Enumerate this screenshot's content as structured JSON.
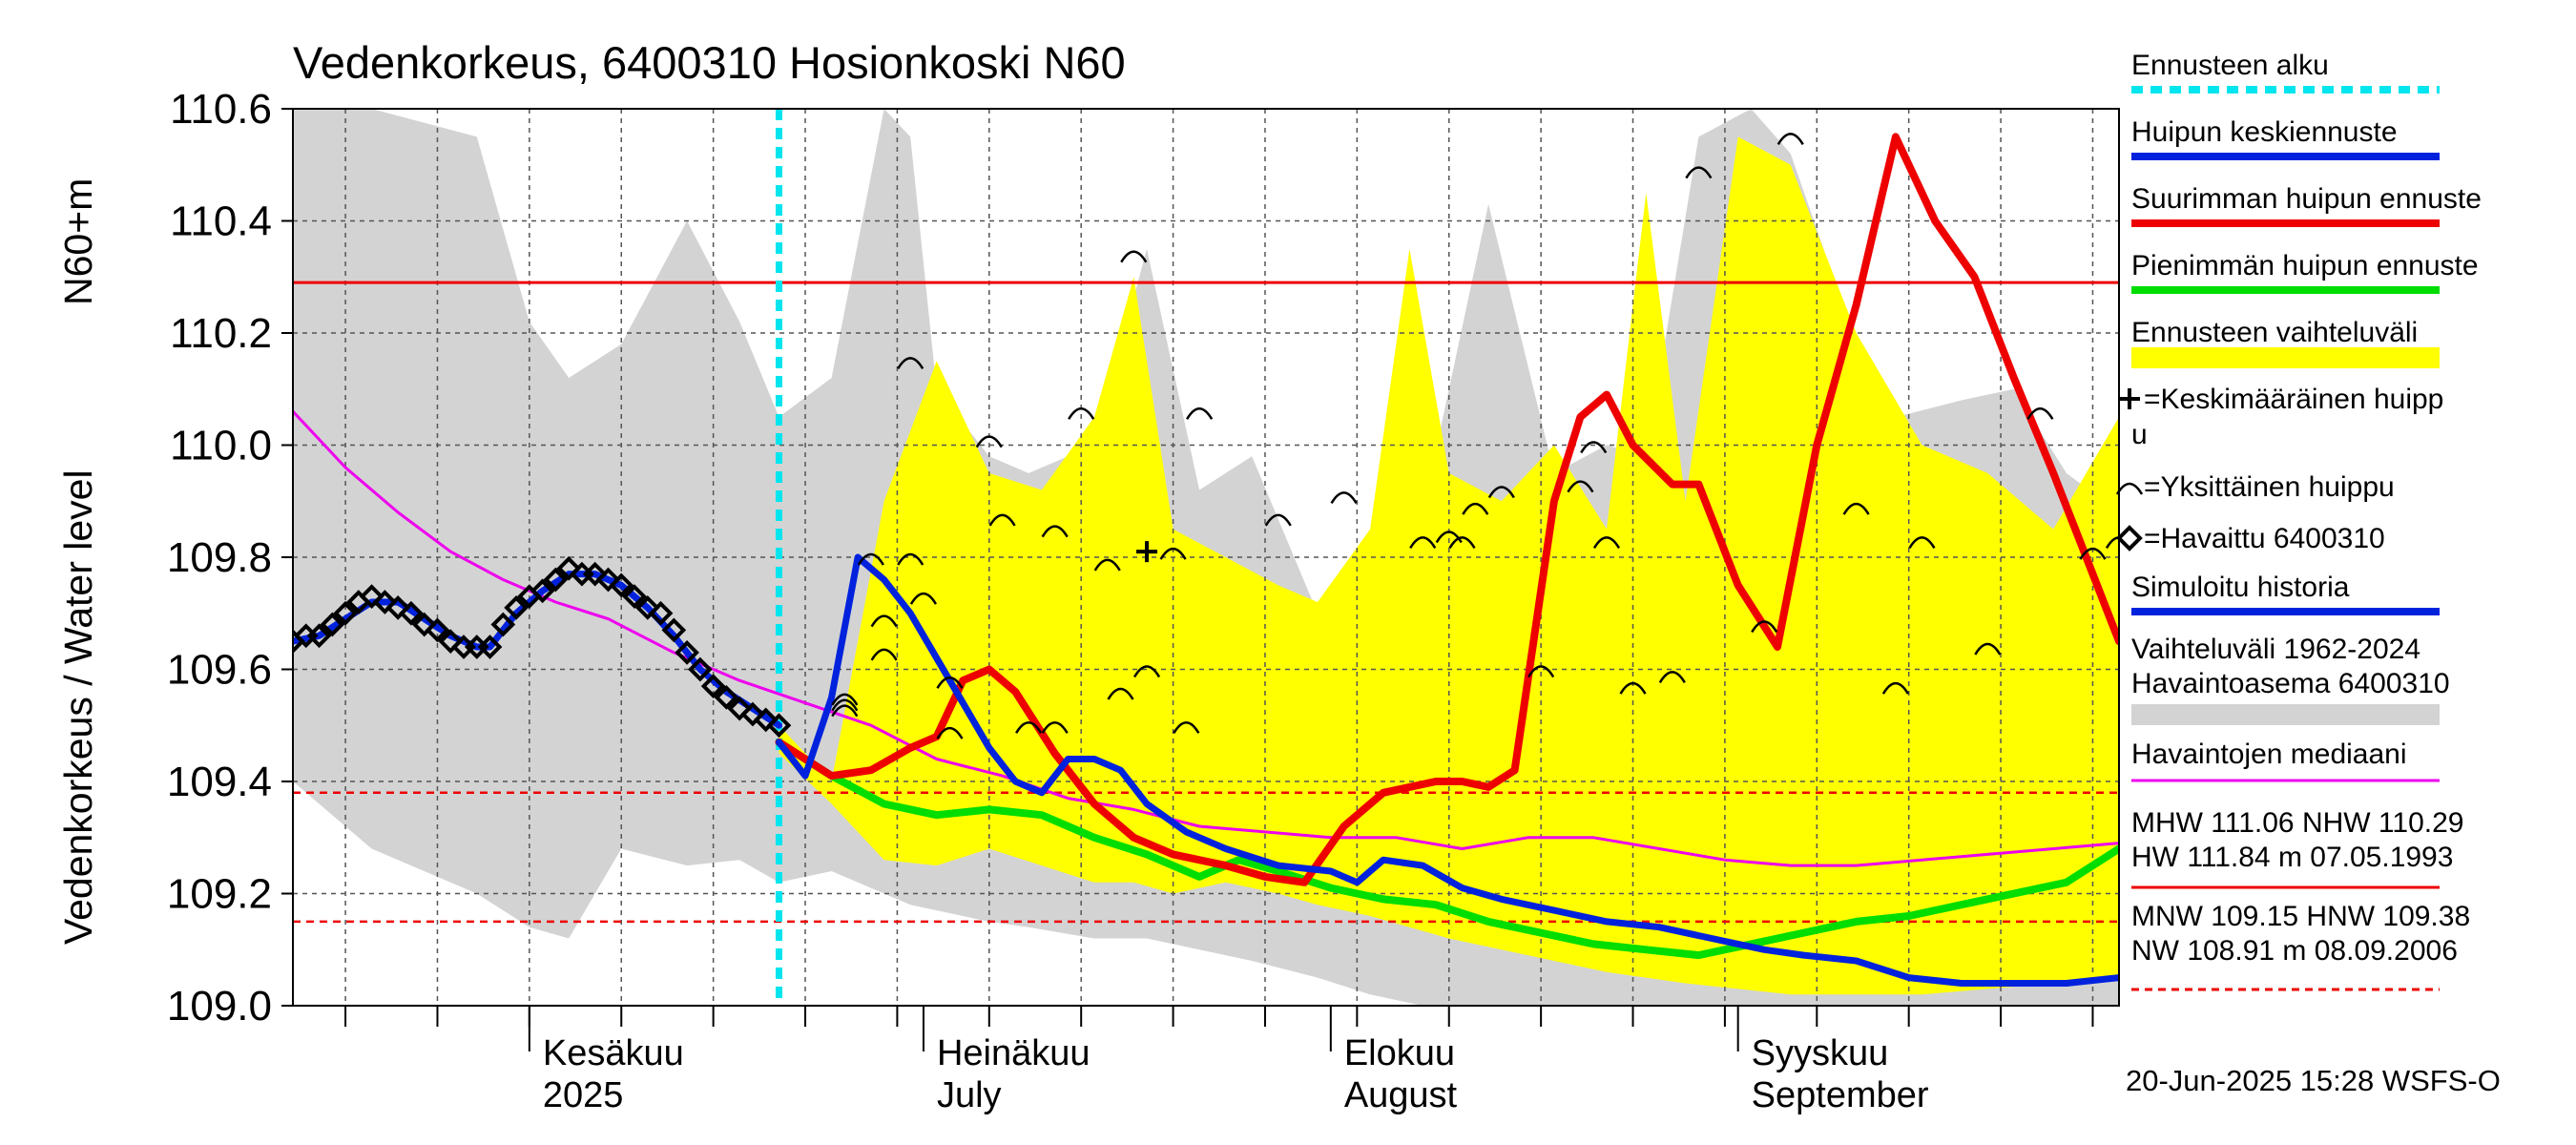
{
  "title": "Vedenkorkeus, 6400310 Hosionkoski N60",
  "ylabel_left": "Vedenkorkeus / Water level",
  "ylabel_unit": "N60+m",
  "footer": "20-Jun-2025 15:28 WSFS-O",
  "months": [
    {
      "fi": "Kesäkuu",
      "en": "2025",
      "date": "2025-06-01"
    },
    {
      "fi": "Heinäkuu",
      "en": "July",
      "date": "2025-07-01"
    },
    {
      "fi": "Elokuu",
      "en": "August",
      "date": "2025-08-01"
    },
    {
      "fi": "Syyskuu",
      "en": "September",
      "date": "2025-09-01"
    }
  ],
  "legend": [
    {
      "label": "Ennusteen alku",
      "color": "#00e5ee",
      "style": "dashed"
    },
    {
      "label": "Huipun keskiennuste",
      "color": "#0022dd",
      "style": "line"
    },
    {
      "label": "Suurimman huipun ennuste",
      "color": "#ee0000",
      "style": "line"
    },
    {
      "label": "Pienimmän huipun ennuste",
      "color": "#00dd00",
      "style": "line"
    },
    {
      "label": "Ennusteen vaihteluväli",
      "color": "#ffff00",
      "style": "band"
    },
    {
      "label": "=Keskimääräinen huipp u",
      "symbol": "plus"
    },
    {
      "label": "=Yksittäinen huippu",
      "symbol": "arc"
    },
    {
      "label": "=Havaittu 6400310",
      "symbol": "diamond"
    },
    {
      "label": "Simuloitu historia",
      "color": "#0022dd",
      "style": "line"
    },
    {
      "label": "Vaihteluväli 1962-2024",
      "label2": " Havaintoasema 6400310",
      "color": "#d3d3d3",
      "style": "band"
    },
    {
      "label": "Havaintojen mediaani",
      "color": "#ee00ee",
      "style": "line"
    },
    {
      "label": "MHW 111.06 NHW 110.29",
      "label2": "HW 111.84 m 07.05.1993",
      "color": "#ee0000",
      "style": "line"
    },
    {
      "label": "MNW 109.15 HNW 109.38",
      "label2": "NW 108.91 m 08.09.2006",
      "color": "#ee0000",
      "style": "dashed"
    }
  ],
  "chart_data": {
    "type": "line",
    "title": "Vedenkorkeus, 6400310 Hosionkoski N60",
    "ylabel": "Vedenkorkeus / Water level N60+m",
    "x_unit": "date",
    "xlim": [
      "2025-05-14",
      "2025-09-30"
    ],
    "ylim": [
      109.0,
      110.6
    ],
    "yticks": [
      "109.0",
      "109.2",
      "109.4",
      "109.6",
      "109.8",
      "110.0",
      "110.2",
      "110.4",
      "110.6"
    ],
    "grid": true,
    "legend_position": "right",
    "forecast_start": "2025-06-20",
    "reference_lines": [
      {
        "name": "NHW",
        "value": 110.29,
        "style": "solid",
        "color": "#ee0000"
      },
      {
        "name": "HNW",
        "value": 109.38,
        "style": "dashed",
        "color": "#ee0000"
      },
      {
        "name": "MNW",
        "value": 109.15,
        "style": "dashed",
        "color": "#ee0000"
      }
    ],
    "history_band": {
      "x": [
        "2025-05-14",
        "2025-05-20",
        "2025-05-28",
        "2025-06-01",
        "2025-06-04",
        "2025-06-08",
        "2025-06-13",
        "2025-06-17",
        "2025-06-20",
        "2025-06-24",
        "2025-06-28",
        "2025-06-30",
        "2025-07-02",
        "2025-07-06",
        "2025-07-09",
        "2025-07-14",
        "2025-07-18",
        "2025-07-22",
        "2025-07-26",
        "2025-07-31",
        "2025-08-04",
        "2025-08-08",
        "2025-08-13",
        "2025-08-18",
        "2025-08-22",
        "2025-08-25",
        "2025-08-29",
        "2025-09-02",
        "2025-09-05",
        "2025-09-09",
        "2025-09-13",
        "2025-09-18",
        "2025-09-22",
        "2025-09-26",
        "2025-09-30"
      ],
      "high": [
        110.6,
        110.6,
        110.55,
        110.22,
        110.12,
        110.18,
        110.4,
        110.22,
        110.05,
        110.12,
        110.6,
        110.55,
        110.1,
        109.98,
        109.95,
        110.0,
        110.35,
        109.92,
        109.98,
        109.7,
        109.85,
        109.88,
        110.43,
        109.95,
        110.0,
        109.98,
        110.55,
        110.6,
        110.52,
        110.25,
        110.05,
        110.08,
        110.1,
        109.95,
        109.88
      ],
      "low": [
        109.4,
        109.28,
        109.2,
        109.14,
        109.12,
        109.28,
        109.25,
        109.26,
        109.22,
        109.24,
        109.2,
        109.18,
        109.17,
        109.15,
        109.14,
        109.12,
        109.12,
        109.1,
        109.08,
        109.05,
        109.02,
        109.0,
        109.0,
        109.0,
        109.0,
        109.0,
        109.0,
        109.0,
        109.0,
        109.0,
        109.0,
        109.0,
        109.0,
        109.0,
        109.0
      ]
    },
    "forecast_band": {
      "x": [
        "2025-06-20",
        "2025-06-24",
        "2025-06-28",
        "2025-07-02",
        "2025-07-06",
        "2025-07-10",
        "2025-07-14",
        "2025-07-17",
        "2025-07-20",
        "2025-07-24",
        "2025-07-28",
        "2025-07-31",
        "2025-08-04",
        "2025-08-07",
        "2025-08-10",
        "2025-08-14",
        "2025-08-18",
        "2025-08-22",
        "2025-08-25",
        "2025-08-28",
        "2025-09-01",
        "2025-09-05",
        "2025-09-10",
        "2025-09-15",
        "2025-09-20",
        "2025-09-25",
        "2025-09-30"
      ],
      "high": [
        109.5,
        109.4,
        109.9,
        110.15,
        109.95,
        109.92,
        110.05,
        110.3,
        109.85,
        109.8,
        109.75,
        109.72,
        109.85,
        110.35,
        109.95,
        109.9,
        110.0,
        109.85,
        110.45,
        109.9,
        110.55,
        110.5,
        110.2,
        110.0,
        109.95,
        109.85,
        110.05
      ],
      "low": [
        109.45,
        109.36,
        109.26,
        109.25,
        109.28,
        109.25,
        109.22,
        109.22,
        109.2,
        109.22,
        109.2,
        109.18,
        109.16,
        109.14,
        109.12,
        109.1,
        109.08,
        109.06,
        109.05,
        109.04,
        109.03,
        109.02,
        109.02,
        109.02,
        109.03,
        109.04,
        109.05
      ]
    },
    "series": [
      {
        "name": "Havaittu 6400310",
        "color": "#000000",
        "marker": "diamond",
        "x": [
          "2025-05-14",
          "2025-05-15",
          "2025-05-16",
          "2025-05-17",
          "2025-05-18",
          "2025-05-19",
          "2025-05-20",
          "2025-05-21",
          "2025-05-22",
          "2025-05-23",
          "2025-05-24",
          "2025-05-25",
          "2025-05-26",
          "2025-05-27",
          "2025-05-28",
          "2025-05-29",
          "2025-05-30",
          "2025-05-31",
          "2025-06-01",
          "2025-06-02",
          "2025-06-03",
          "2025-06-04",
          "2025-06-05",
          "2025-06-06",
          "2025-06-07",
          "2025-06-08",
          "2025-06-09",
          "2025-06-10",
          "2025-06-11",
          "2025-06-12",
          "2025-06-13",
          "2025-06-14",
          "2025-06-15",
          "2025-06-16",
          "2025-06-17",
          "2025-06-18",
          "2025-06-19",
          "2025-06-20"
        ],
        "y": [
          109.65,
          109.66,
          109.66,
          109.68,
          109.7,
          109.72,
          109.73,
          109.72,
          109.71,
          109.7,
          109.68,
          109.67,
          109.65,
          109.64,
          109.64,
          109.64,
          109.68,
          109.71,
          109.73,
          109.74,
          109.76,
          109.78,
          109.77,
          109.77,
          109.76,
          109.75,
          109.73,
          109.71,
          109.7,
          109.67,
          109.63,
          109.6,
          109.57,
          109.55,
          109.53,
          109.52,
          109.51,
          109.5
        ]
      },
      {
        "name": "Simuloitu historia",
        "color": "#0022dd",
        "x": [
          "2025-05-14",
          "2025-05-16",
          "2025-05-18",
          "2025-05-20",
          "2025-05-22",
          "2025-05-24",
          "2025-05-26",
          "2025-05-28",
          "2025-05-29",
          "2025-05-31",
          "2025-06-02",
          "2025-06-04",
          "2025-06-06",
          "2025-06-08",
          "2025-06-10",
          "2025-06-12",
          "2025-06-14",
          "2025-06-16",
          "2025-06-18",
          "2025-06-20"
        ],
        "y": [
          109.65,
          109.66,
          109.69,
          109.72,
          109.72,
          109.69,
          109.66,
          109.64,
          109.64,
          109.7,
          109.74,
          109.77,
          109.77,
          109.75,
          109.71,
          109.66,
          109.6,
          109.56,
          109.53,
          109.5
        ]
      },
      {
        "name": "Havaintojen mediaani",
        "color": "#ee00ee",
        "x": [
          "2025-05-14",
          "2025-05-18",
          "2025-05-22",
          "2025-05-26",
          "2025-05-30",
          "2025-06-03",
          "2025-06-07",
          "2025-06-12",
          "2025-06-17",
          "2025-06-22",
          "2025-06-27",
          "2025-07-02",
          "2025-07-07",
          "2025-07-12",
          "2025-07-17",
          "2025-07-22",
          "2025-07-27",
          "2025-08-01",
          "2025-08-06",
          "2025-08-11",
          "2025-08-16",
          "2025-08-21",
          "2025-08-26",
          "2025-08-31",
          "2025-09-05",
          "2025-09-10",
          "2025-09-15",
          "2025-09-20",
          "2025-09-25",
          "2025-09-30"
        ],
        "y": [
          110.06,
          109.96,
          109.88,
          109.81,
          109.76,
          109.72,
          109.69,
          109.63,
          109.58,
          109.54,
          109.5,
          109.44,
          109.41,
          109.37,
          109.35,
          109.32,
          109.31,
          109.3,
          109.3,
          109.28,
          109.3,
          109.3,
          109.28,
          109.26,
          109.25,
          109.25,
          109.26,
          109.27,
          109.28,
          109.29
        ]
      },
      {
        "name": "Huipun keskiennuste",
        "color": "#0022dd",
        "x": [
          "2025-06-20",
          "2025-06-22",
          "2025-06-24",
          "2025-06-26",
          "2025-06-28",
          "2025-06-30",
          "2025-07-02",
          "2025-07-04",
          "2025-07-06",
          "2025-07-08",
          "2025-07-10",
          "2025-07-12",
          "2025-07-14",
          "2025-07-16",
          "2025-07-18",
          "2025-07-21",
          "2025-07-24",
          "2025-07-28",
          "2025-08-01",
          "2025-08-03",
          "2025-08-05",
          "2025-08-08",
          "2025-08-11",
          "2025-08-14",
          "2025-08-18",
          "2025-08-22",
          "2025-08-26",
          "2025-08-30",
          "2025-09-03",
          "2025-09-06",
          "2025-09-10",
          "2025-09-14",
          "2025-09-18",
          "2025-09-22",
          "2025-09-26",
          "2025-09-30"
        ],
        "y": [
          109.47,
          109.41,
          109.55,
          109.8,
          109.76,
          109.7,
          109.62,
          109.54,
          109.46,
          109.4,
          109.38,
          109.44,
          109.44,
          109.42,
          109.36,
          109.31,
          109.28,
          109.25,
          109.24,
          109.22,
          109.26,
          109.25,
          109.21,
          109.19,
          109.17,
          109.15,
          109.14,
          109.12,
          109.1,
          109.09,
          109.08,
          109.05,
          109.04,
          109.04,
          109.04,
          109.05
        ]
      },
      {
        "name": "Suurimman huipun ennuste",
        "color": "#ee0000",
        "x": [
          "2025-06-20",
          "2025-06-24",
          "2025-06-27",
          "2025-06-30",
          "2025-07-02",
          "2025-07-04",
          "2025-07-06",
          "2025-07-08",
          "2025-07-11",
          "2025-07-14",
          "2025-07-17",
          "2025-07-20",
          "2025-07-24",
          "2025-07-27",
          "2025-07-30",
          "2025-08-02",
          "2025-08-05",
          "2025-08-09",
          "2025-08-11",
          "2025-08-13",
          "2025-08-15",
          "2025-08-18",
          "2025-08-20",
          "2025-08-22",
          "2025-08-24",
          "2025-08-27",
          "2025-08-29",
          "2025-09-01",
          "2025-09-04",
          "2025-09-07",
          "2025-09-10",
          "2025-09-13",
          "2025-09-16",
          "2025-09-19",
          "2025-09-22",
          "2025-09-25",
          "2025-09-28",
          "2025-09-30"
        ],
        "y": [
          109.47,
          109.41,
          109.42,
          109.46,
          109.48,
          109.58,
          109.6,
          109.56,
          109.45,
          109.36,
          109.3,
          109.27,
          109.25,
          109.23,
          109.22,
          109.32,
          109.38,
          109.4,
          109.4,
          109.39,
          109.42,
          109.9,
          110.05,
          110.09,
          110.0,
          109.93,
          109.93,
          109.75,
          109.64,
          110.0,
          110.25,
          110.55,
          110.4,
          110.3,
          110.12,
          109.95,
          109.77,
          109.65
        ]
      },
      {
        "name": "Pienimmän huipun ennuste",
        "color": "#00dd00",
        "x": [
          "2025-06-20",
          "2025-06-24",
          "2025-06-28",
          "2025-07-02",
          "2025-07-06",
          "2025-07-10",
          "2025-07-14",
          "2025-07-18",
          "2025-07-22",
          "2025-07-25",
          "2025-07-28",
          "2025-08-01",
          "2025-08-05",
          "2025-08-09",
          "2025-08-13",
          "2025-08-17",
          "2025-08-21",
          "2025-08-25",
          "2025-08-29",
          "2025-09-02",
          "2025-09-06",
          "2025-09-10",
          "2025-09-14",
          "2025-09-18",
          "2025-09-22",
          "2025-09-26",
          "2025-09-30"
        ],
        "y": [
          109.47,
          109.41,
          109.36,
          109.34,
          109.35,
          109.34,
          109.3,
          109.27,
          109.23,
          109.26,
          109.24,
          109.21,
          109.19,
          109.18,
          109.15,
          109.13,
          109.11,
          109.1,
          109.09,
          109.11,
          109.13,
          109.15,
          109.16,
          109.18,
          109.2,
          109.22,
          109.28
        ]
      },
      {
        "name": "Keskimääräinen huippu",
        "marker": "plus",
        "x": [
          "2025-07-18"
        ],
        "y": [
          109.81
        ]
      }
    ],
    "single_peaks": {
      "x": [
        "2025-06-25",
        "2025-06-25",
        "2025-06-25",
        "2025-06-27",
        "2025-06-28",
        "2025-06-28",
        "2025-06-30",
        "2025-06-30",
        "2025-07-01",
        "2025-07-03",
        "2025-07-03",
        "2025-07-06",
        "2025-07-07",
        "2025-07-09",
        "2025-07-11",
        "2025-07-11",
        "2025-07-13",
        "2025-07-15",
        "2025-07-16",
        "2025-07-17",
        "2025-07-18",
        "2025-07-20",
        "2025-07-21",
        "2025-07-22",
        "2025-07-28",
        "2025-08-02",
        "2025-08-08",
        "2025-08-10",
        "2025-08-11",
        "2025-08-12",
        "2025-08-14",
        "2025-08-17",
        "2025-08-20",
        "2025-08-21",
        "2025-08-22",
        "2025-08-24",
        "2025-08-27",
        "2025-08-29",
        "2025-09-03",
        "2025-09-05",
        "2025-09-10",
        "2025-09-13",
        "2025-09-15",
        "2025-09-20",
        "2025-09-24",
        "2025-09-28",
        "2025-09-30"
      ],
      "y": [
        109.55,
        109.54,
        109.53,
        109.8,
        109.69,
        109.63,
        109.8,
        110.15,
        109.73,
        109.58,
        109.49,
        110.01,
        109.87,
        109.5,
        109.85,
        109.5,
        110.06,
        109.79,
        109.56,
        110.34,
        109.6,
        109.81,
        109.5,
        110.06,
        109.87,
        109.91,
        109.83,
        109.84,
        109.83,
        109.89,
        109.92,
        109.6,
        109.93,
        110.0,
        109.83,
        109.57,
        109.59,
        110.49,
        109.68,
        110.55,
        109.89,
        109.57,
        109.83,
        109.64,
        110.06,
        109.81,
        109.83
      ]
    }
  }
}
